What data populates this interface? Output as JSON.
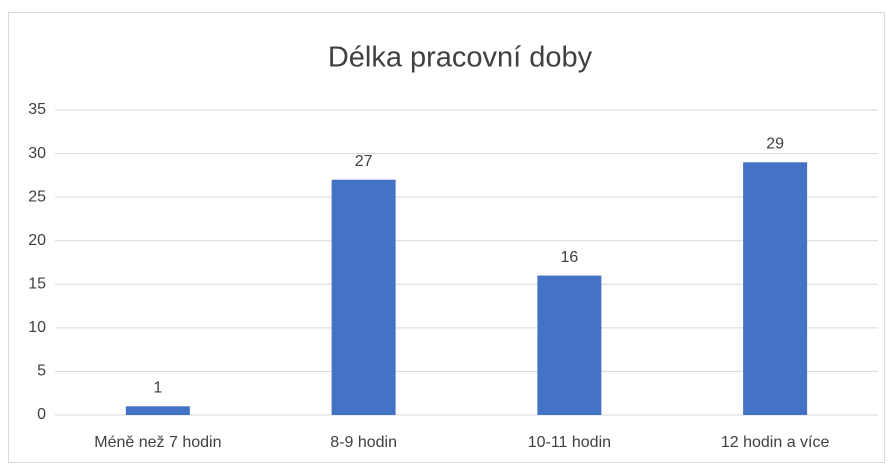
{
  "chart_data": {
    "type": "bar",
    "title": "Délka pracovní doby",
    "categories": [
      "Méně než 7 hodin",
      "8-9 hodin",
      "10-11 hodin",
      "12 hodin a více"
    ],
    "values": [
      1,
      27,
      16,
      29
    ],
    "color": "#4472c4",
    "ylim": [
      0,
      35
    ],
    "yticks": [
      0,
      5,
      10,
      15,
      20,
      25,
      30,
      35
    ],
    "grid": true,
    "data_labels": true
  }
}
